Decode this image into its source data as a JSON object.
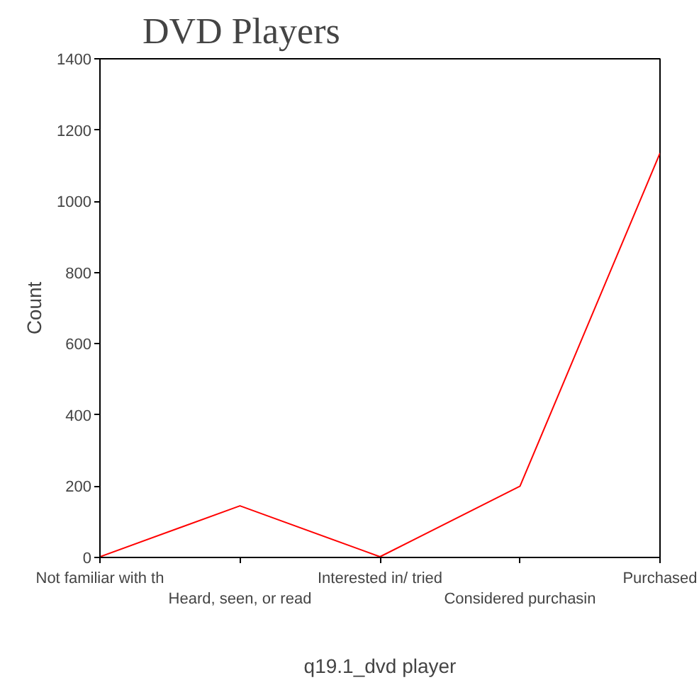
{
  "chart_data": {
    "type": "line",
    "title": "DVD Players",
    "xlabel": "q19.1_dvd player",
    "ylabel": "Count",
    "categories": [
      "Not familiar with th",
      "Heard, seen, or read",
      "Interested in/ tried",
      "Considered purchasin",
      "Purchased"
    ],
    "series": [
      {
        "color": "#ff0000",
        "values": [
          2,
          145,
          2,
          200,
          1135
        ]
      }
    ],
    "ylim": [
      0,
      1400
    ],
    "yticks": [
      0,
      200,
      400,
      600,
      800,
      1000,
      1200,
      1400
    ],
    "grid": false,
    "marker": "none",
    "line_style": "solid"
  }
}
